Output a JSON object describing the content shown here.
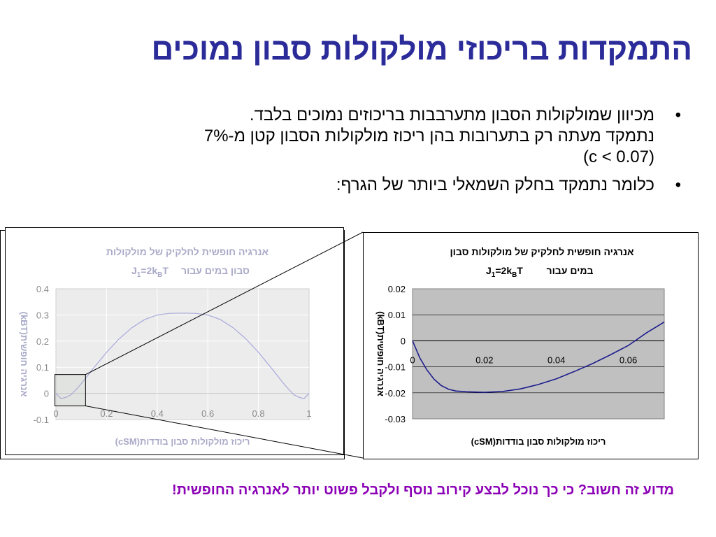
{
  "slide": {
    "title": "התמקדות בריכוזי מולקולות סבון נמוכים",
    "bullets": [
      {
        "lines": [
          "מכיוון שמולקולות הסבון מתערבבות בריכוזים נמוכים בלבד.",
          "נתמקד מעתה רק בתערובות בהן ריכוז מולקולות הסבון קטן מ-7%",
          "(c < 0.07)"
        ]
      },
      {
        "lines": [
          "כלומר נתמקד בחלק השמאלי ביותר של הגרף:"
        ]
      }
    ],
    "footer": "מדוע זה חשוב? כי כך נוכל לבצע קירוב נוסף ולקבל פשוט יותר לאנרגיה החופשית!"
  },
  "colors": {
    "title": "#2b2b9a",
    "footer": "#8b00b5",
    "series_faded": "#a7a9dc",
    "series_dark": "#1d1d8e",
    "plot_bg_left": "#ececec",
    "plot_bg_right": "#c0c0c0",
    "text_faded": "#a9a9c8"
  },
  "chart_data": [
    {
      "type": "line",
      "title_line1": "אנרגיה חופשית לחלקיק של מולקולות",
      "title_line2_prefix": "סבון במים עבור",
      "title_math": "J1=2kBT",
      "xlabel": "ריכוז מולקולות סבון בודדות(cSM)",
      "ylabel": "אנרגיה חופשית(kBT)",
      "xlim": [
        0,
        1
      ],
      "ylim": [
        -0.1,
        0.4
      ],
      "xticks": [
        "0",
        "0.2",
        "0.4",
        "0.6",
        "0.8",
        "1"
      ],
      "yticks": [
        "0.4",
        "0.3",
        "0.2",
        "0.1",
        "0",
        "-0.1"
      ],
      "grid": true,
      "x": [
        0,
        0.01,
        0.02,
        0.04,
        0.06,
        0.08,
        0.1,
        0.15,
        0.2,
        0.25,
        0.3,
        0.35,
        0.4,
        0.45,
        0.5,
        0.55,
        0.6,
        0.65,
        0.7,
        0.75,
        0.8,
        0.85,
        0.9,
        0.92,
        0.94,
        0.96,
        0.98,
        0.99,
        1
      ],
      "y": [
        0,
        -0.01,
        -0.02,
        -0.015,
        -0.005,
        0.015,
        0.037,
        0.098,
        0.157,
        0.209,
        0.251,
        0.282,
        0.3,
        0.306,
        0.307,
        0.306,
        0.3,
        0.282,
        0.251,
        0.209,
        0.157,
        0.098,
        0.037,
        0.015,
        -0.005,
        -0.015,
        -0.02,
        -0.01,
        0
      ]
    },
    {
      "type": "line",
      "title_line1": "אנרגיה חופשית לחלקיק של מולקולות סבון",
      "title_line2_prefix": "במים עבור",
      "title_math": "J1=2kBT",
      "xlabel": "ריכוז מולקולות סבון בודדות(cSM)",
      "ylabel": "אנרגיה חופשית(kBT)",
      "xlim": [
        0,
        0.07
      ],
      "ylim": [
        -0.03,
        0.02
      ],
      "xticks": [
        "0",
        "0.02",
        "0.04",
        "0.06"
      ],
      "yticks": [
        "0.02",
        "0.01",
        "0",
        "-0.01",
        "-0.02",
        "-0.03"
      ],
      "grid": true,
      "x": [
        0,
        0.002,
        0.004,
        0.006,
        0.008,
        0.01,
        0.012,
        0.015,
        0.02,
        0.025,
        0.03,
        0.035,
        0.04,
        0.045,
        0.05,
        0.055,
        0.06,
        0.065,
        0.07
      ],
      "y": [
        0,
        -0.0065,
        -0.0112,
        -0.0148,
        -0.0172,
        -0.0186,
        -0.0193,
        -0.0196,
        -0.0198,
        -0.0195,
        -0.0185,
        -0.0168,
        -0.0146,
        -0.0118,
        -0.0088,
        -0.0054,
        -0.0018,
        0.003,
        0.0072
      ]
    }
  ]
}
